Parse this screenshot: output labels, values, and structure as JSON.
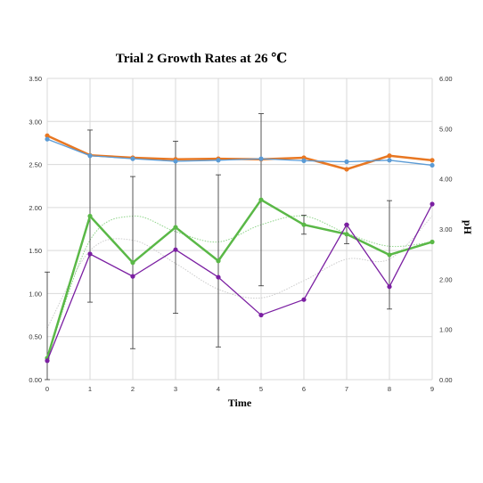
{
  "chart_data": {
    "type": "line",
    "title": "Trial 2 Growth Rates at 26 ℃",
    "xlabel": "Time",
    "ylabel": "",
    "y2label": "pH",
    "x": [
      0,
      1,
      2,
      3,
      4,
      5,
      6,
      7,
      8,
      9
    ],
    "ylim": [
      0,
      3.5
    ],
    "y2lim": [
      0,
      6
    ],
    "yticks": [
      "0.00",
      "0.50",
      "1.00",
      "1.50",
      "2.00",
      "2.50",
      "3.00",
      "3.50"
    ],
    "y2ticks": [
      "0.00",
      "1.00",
      "2.00",
      "3.00",
      "4.00",
      "5.00",
      "6.00"
    ],
    "xticks": [
      "0",
      "1",
      "2",
      "3",
      "4",
      "5",
      "6",
      "7",
      "8",
      "9"
    ],
    "grid": true,
    "series": [
      {
        "axis": "left",
        "color": "#5ab847",
        "stroke_width": 2.5,
        "marker": "circle",
        "values": [
          0.25,
          1.9,
          1.36,
          1.77,
          1.38,
          2.09,
          1.8,
          1.69,
          1.45,
          1.6
        ],
        "error": [
          1.0,
          1.0,
          1.0,
          1.0,
          1.0,
          1.0,
          0.11,
          0.11,
          0.63,
          0.0
        ]
      },
      {
        "axis": "left",
        "color": "#7b1fa2",
        "stroke_width": 1.3,
        "marker": "circle",
        "values": [
          0.22,
          1.46,
          1.2,
          1.51,
          1.19,
          0.75,
          0.93,
          1.8,
          1.08,
          2.04
        ]
      },
      {
        "axis": "right",
        "color": "#e87722",
        "stroke_width": 2.5,
        "marker": "circle",
        "values": [
          4.86,
          4.47,
          4.42,
          4.39,
          4.4,
          4.39,
          4.42,
          4.19,
          4.46,
          4.37
        ]
      },
      {
        "axis": "right",
        "color": "#5b9bd5",
        "stroke_width": 1.3,
        "marker": "circle",
        "values": [
          4.79,
          4.46,
          4.4,
          4.35,
          4.37,
          4.4,
          4.36,
          4.34,
          4.37,
          4.27
        ]
      }
    ],
    "trendlines": [
      {
        "color": "#8fd48a",
        "values": [
          0.25,
          1.62,
          1.9,
          1.72,
          1.6,
          1.8,
          1.9,
          1.7,
          1.55,
          1.6
        ]
      },
      {
        "color": "#cccccc",
        "values": [
          0.6,
          1.5,
          1.62,
          1.35,
          1.05,
          0.95,
          1.15,
          1.4,
          1.4,
          1.9
        ]
      }
    ]
  }
}
